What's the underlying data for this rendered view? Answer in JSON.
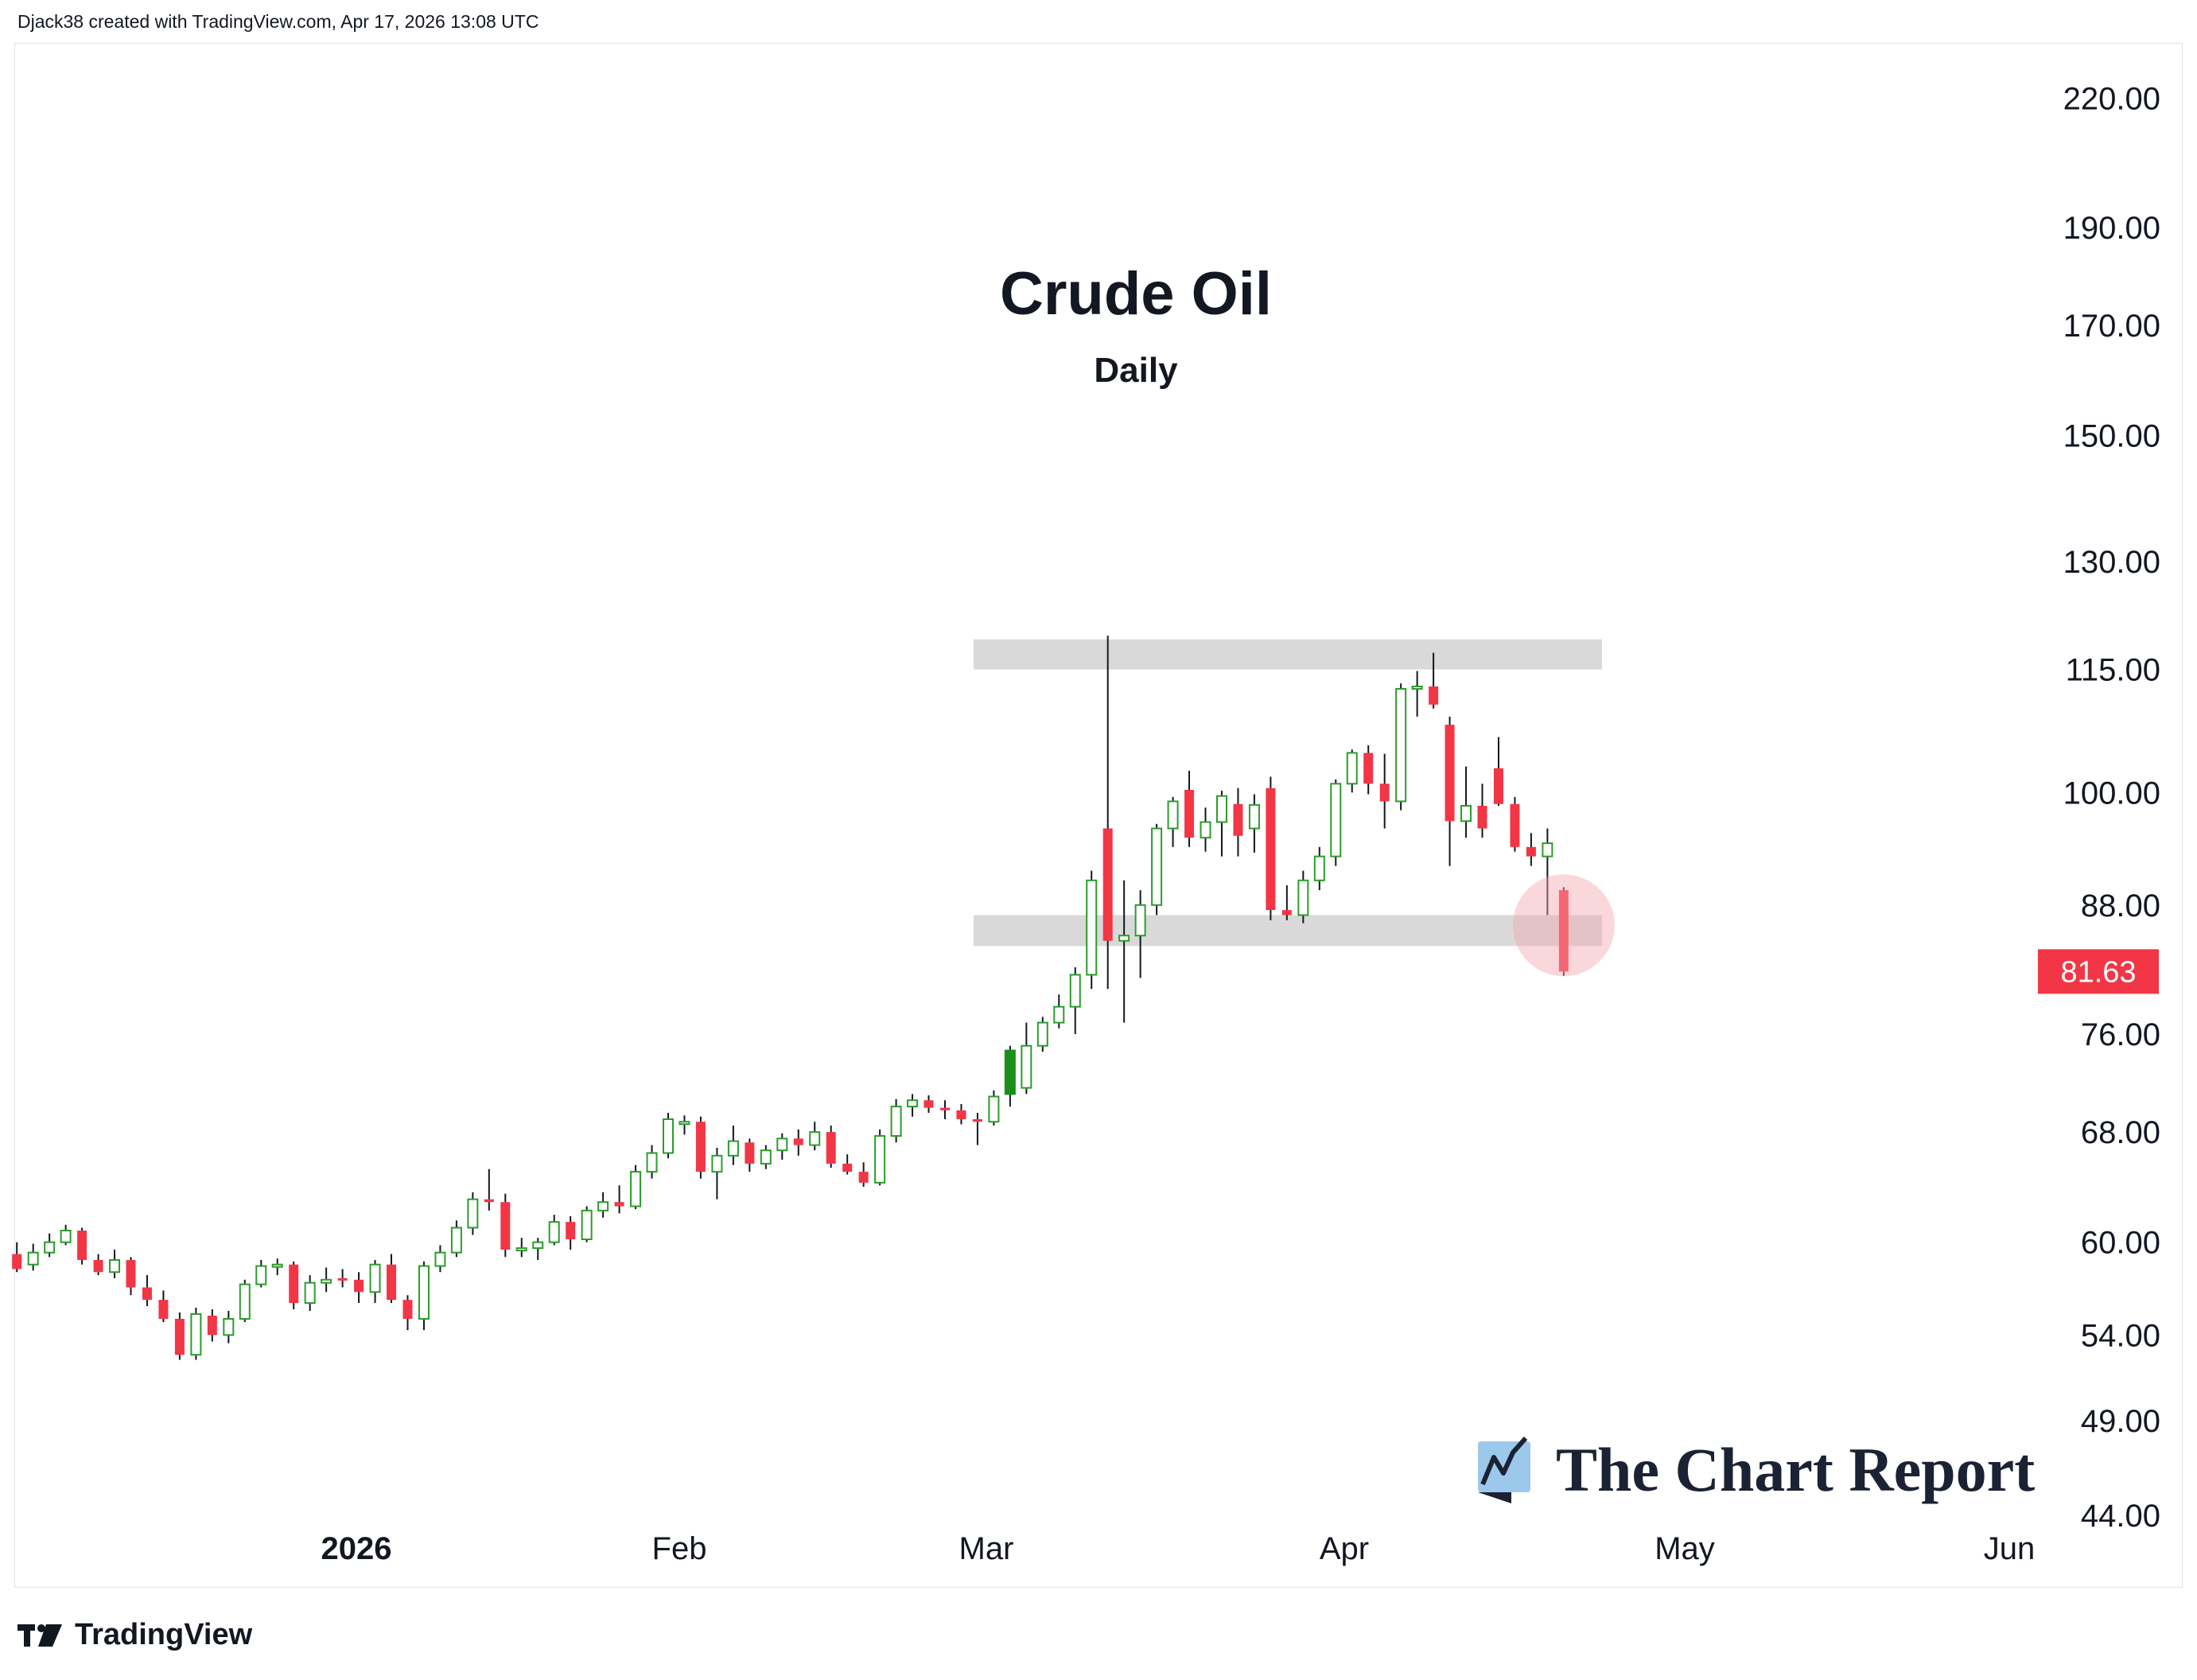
{
  "header": {
    "attribution": "Djack38 created with TradingView.com, Apr 17, 2026 13:08 UTC"
  },
  "footer": {
    "brand": "TradingView"
  },
  "watermark": {
    "text": "The Chart Report"
  },
  "colors": {
    "up": "#089981",
    "up_fill": "#ffffff",
    "up_solid": "#1a8f1a",
    "down": "#f23645",
    "zone": "#d9d9d9",
    "highlight": "#f4a7b0",
    "price_badge": "#f23645"
  },
  "chart_data": {
    "type": "candlestick",
    "title": "Crude Oil",
    "subtitle": "Daily",
    "y_scale": "log",
    "ylim": [
      40,
      230
    ],
    "y_ticks": [
      "220.00",
      "190.00",
      "170.00",
      "150.00",
      "130.00",
      "115.00",
      "100.00",
      "88.00",
      "76.00",
      "68.00",
      "60.00",
      "54.00",
      "49.00",
      "44.00"
    ],
    "x_ticks": [
      "2026",
      "Feb",
      "Mar",
      "Apr",
      "May",
      "Jun"
    ],
    "last_price": "81.63",
    "zones": [
      {
        "low": 115,
        "high": 119
      },
      {
        "low": 84,
        "high": 87
      }
    ],
    "candles": [
      [
        59.2,
        60.0,
        58.0,
        58.2
      ],
      [
        58.5,
        59.9,
        58.1,
        59.3
      ],
      [
        59.3,
        60.6,
        59.0,
        60.0
      ],
      [
        60.0,
        61.2,
        59.8,
        60.8
      ],
      [
        60.8,
        61.0,
        58.5,
        58.8
      ],
      [
        58.8,
        59.2,
        57.8,
        58.0
      ],
      [
        58.0,
        59.5,
        57.6,
        58.8
      ],
      [
        58.8,
        59.0,
        56.5,
        57.0
      ],
      [
        57.0,
        57.8,
        55.8,
        56.2
      ],
      [
        56.2,
        56.8,
        54.8,
        55.0
      ],
      [
        55.0,
        55.4,
        52.5,
        52.8
      ],
      [
        52.8,
        55.7,
        52.5,
        55.3
      ],
      [
        55.2,
        55.6,
        53.6,
        54.0
      ],
      [
        54.0,
        55.5,
        53.5,
        55.0
      ],
      [
        55.0,
        57.5,
        54.8,
        57.2
      ],
      [
        57.2,
        58.8,
        57.0,
        58.4
      ],
      [
        58.4,
        58.9,
        57.8,
        58.5
      ],
      [
        58.5,
        58.7,
        55.6,
        56.0
      ],
      [
        56.0,
        57.8,
        55.5,
        57.3
      ],
      [
        57.3,
        58.3,
        56.7,
        57.5
      ],
      [
        57.6,
        58.2,
        57.0,
        57.5
      ],
      [
        57.5,
        58.0,
        56.0,
        56.7
      ],
      [
        56.7,
        58.8,
        56.0,
        58.5
      ],
      [
        58.5,
        59.2,
        56.0,
        56.2
      ],
      [
        56.2,
        56.5,
        54.3,
        55.0
      ],
      [
        55.0,
        58.7,
        54.3,
        58.4
      ],
      [
        58.4,
        59.8,
        58.0,
        59.3
      ],
      [
        59.3,
        61.5,
        59.0,
        61.0
      ],
      [
        61.0,
        63.5,
        60.5,
        63.0
      ],
      [
        63.0,
        65.2,
        62.2,
        62.8
      ],
      [
        62.8,
        63.4,
        59.0,
        59.5
      ],
      [
        59.5,
        60.3,
        59.0,
        59.6
      ],
      [
        59.6,
        60.3,
        58.8,
        60.0
      ],
      [
        60.0,
        61.9,
        59.8,
        61.4
      ],
      [
        61.4,
        61.8,
        59.5,
        60.2
      ],
      [
        60.2,
        62.5,
        60.0,
        62.2
      ],
      [
        62.2,
        63.5,
        61.7,
        62.8
      ],
      [
        62.8,
        64.0,
        62.0,
        62.5
      ],
      [
        62.5,
        65.5,
        62.3,
        65.0
      ],
      [
        65.0,
        67.0,
        64.5,
        66.4
      ],
      [
        66.4,
        69.5,
        66.0,
        69.0
      ],
      [
        68.8,
        69.3,
        67.8,
        68.8
      ],
      [
        68.8,
        69.2,
        64.5,
        65.0
      ],
      [
        65.0,
        66.8,
        63.0,
        66.2
      ],
      [
        66.2,
        68.5,
        65.5,
        67.3
      ],
      [
        67.2,
        67.5,
        65.0,
        65.6
      ],
      [
        65.6,
        67.0,
        65.2,
        66.6
      ],
      [
        66.6,
        67.9,
        65.9,
        67.5
      ],
      [
        67.5,
        68.2,
        66.2,
        67.0
      ],
      [
        67.0,
        68.8,
        66.6,
        68.0
      ],
      [
        68.0,
        68.5,
        65.3,
        65.6
      ],
      [
        65.6,
        66.3,
        64.8,
        65.0
      ],
      [
        65.0,
        65.7,
        63.9,
        64.2
      ],
      [
        64.2,
        68.2,
        64.0,
        67.7
      ],
      [
        67.7,
        70.6,
        67.2,
        70.0
      ],
      [
        70.0,
        71.0,
        69.2,
        70.5
      ],
      [
        70.5,
        70.9,
        69.5,
        69.9
      ],
      [
        69.9,
        70.5,
        69.0,
        69.7
      ],
      [
        69.7,
        70.2,
        68.6,
        69.0
      ],
      [
        69.0,
        69.5,
        67.0,
        68.8
      ],
      [
        68.8,
        71.3,
        68.5,
        70.8
      ],
      [
        71.0,
        75.0,
        70.0,
        74.6
      ],
      [
        71.5,
        77.0,
        71.0,
        75.0
      ],
      [
        75.0,
        77.5,
        74.5,
        77.0
      ],
      [
        77.0,
        79.5,
        76.5,
        78.4
      ],
      [
        78.4,
        82.0,
        76.0,
        81.3
      ],
      [
        81.3,
        91.5,
        80.0,
        90.5
      ],
      [
        96.0,
        119.5,
        80.0,
        84.5
      ],
      [
        84.5,
        90.5,
        77.0,
        85.0
      ],
      [
        85.0,
        89.5,
        81.0,
        88.0
      ],
      [
        88.0,
        96.5,
        87.0,
        96.0
      ],
      [
        96.0,
        99.5,
        94.0,
        99.0
      ],
      [
        100.3,
        102.5,
        94.0,
        95.0
      ],
      [
        95.0,
        98.3,
        93.5,
        96.7
      ],
      [
        96.7,
        100.2,
        93.0,
        99.6
      ],
      [
        98.7,
        100.5,
        93.0,
        95.2
      ],
      [
        96.0,
        99.8,
        93.4,
        98.6
      ],
      [
        100.5,
        101.8,
        86.5,
        87.5
      ],
      [
        87.5,
        90.0,
        86.5,
        87.0
      ],
      [
        87.0,
        91.5,
        86.2,
        90.5
      ],
      [
        90.5,
        94.0,
        89.5,
        93.0
      ],
      [
        93.0,
        101.5,
        92.0,
        101.0
      ],
      [
        101.0,
        105.0,
        100.0,
        104.6
      ],
      [
        104.6,
        105.5,
        99.8,
        101.0
      ],
      [
        101.0,
        104.5,
        96.0,
        99.0
      ],
      [
        99.0,
        113.2,
        98.0,
        112.5
      ],
      [
        112.5,
        114.8,
        109.0,
        112.8
      ],
      [
        112.8,
        117.2,
        110.0,
        110.5
      ],
      [
        108.0,
        109.0,
        92.0,
        96.8
      ],
      [
        96.8,
        103.0,
        95.0,
        98.5
      ],
      [
        98.5,
        101.0,
        95.0,
        96.0
      ],
      [
        102.8,
        106.5,
        98.5,
        98.7
      ],
      [
        98.7,
        99.5,
        93.5,
        94.0
      ],
      [
        94.0,
        95.5,
        92.0,
        93.0
      ],
      [
        93.0,
        96.0,
        87.0,
        94.4
      ],
      [
        89.5,
        89.8,
        81.2,
        81.6
      ]
    ]
  }
}
